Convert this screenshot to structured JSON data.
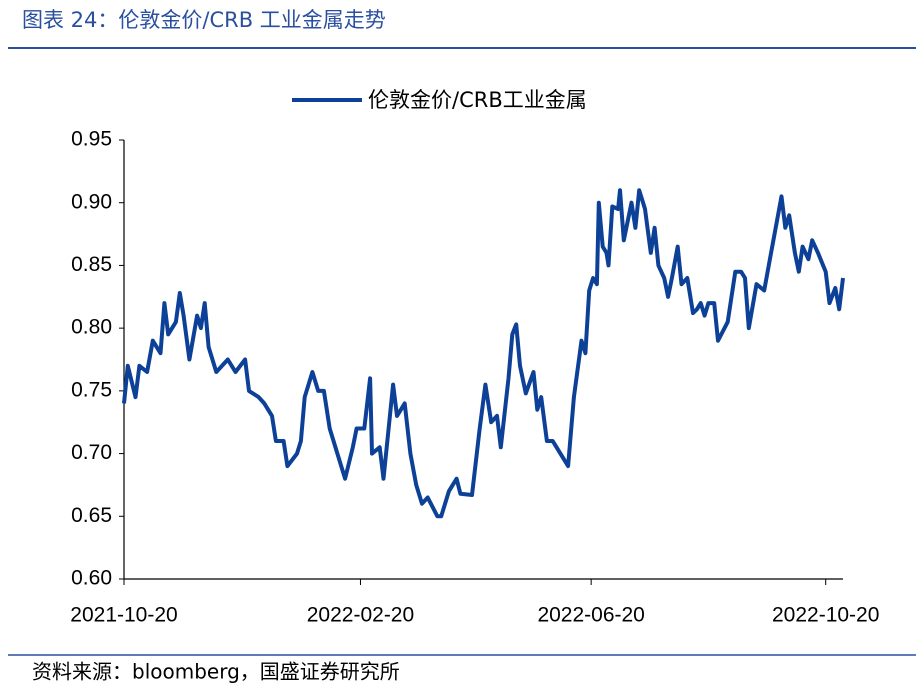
{
  "header": {
    "title": "图表 24：伦敦金价/CRB 工业金属走势"
  },
  "footer": {
    "source": "资料来源：bloomberg，国盛证券研究所"
  },
  "chart_data": {
    "type": "line",
    "legend": "top",
    "x": [
      "2021-10-20",
      "2021-10-22",
      "2021-10-26",
      "2021-10-28",
      "2021-11-01",
      "2021-11-04",
      "2021-11-08",
      "2021-11-10",
      "2021-11-12",
      "2021-11-16",
      "2021-11-18",
      "2021-11-20",
      "2021-11-23",
      "2021-11-27",
      "2021-11-29",
      "2021-12-01",
      "2021-12-03",
      "2021-12-07",
      "2021-12-13",
      "2021-12-17",
      "2021-12-22",
      "2021-12-24",
      "2021-12-29",
      "2022-01-01",
      "2022-01-05",
      "2022-01-07",
      "2022-01-11",
      "2022-01-13",
      "2022-01-18",
      "2022-01-20",
      "2022-01-22",
      "2022-01-26",
      "2022-01-29",
      "2022-02-01",
      "2022-02-04",
      "2022-02-10",
      "2022-02-12",
      "2022-02-16",
      "2022-02-18",
      "2022-02-22",
      "2022-02-25",
      "2022-02-26",
      "2022-03-02",
      "2022-03-04",
      "2022-03-09",
      "2022-03-11",
      "2022-03-15",
      "2022-03-18",
      "2022-03-21",
      "2022-03-24",
      "2022-03-27",
      "2022-04-01",
      "2022-04-03",
      "2022-04-07",
      "2022-04-11",
      "2022-04-13",
      "2022-04-19",
      "2022-04-23",
      "2022-04-26",
      "2022-04-29",
      "2022-05-02",
      "2022-05-04",
      "2022-05-08",
      "2022-05-10",
      "2022-05-12",
      "2022-05-14",
      "2022-05-17",
      "2022-05-21",
      "2022-05-23",
      "2022-05-25",
      "2022-05-28",
      "2022-05-31",
      "2022-06-04",
      "2022-06-08",
      "2022-06-11",
      "2022-06-15",
      "2022-06-17",
      "2022-06-19",
      "2022-06-21",
      "2022-06-23",
      "2022-06-24",
      "2022-06-26",
      "2022-06-28",
      "2022-06-29",
      "2022-07-01",
      "2022-07-04",
      "2022-07-05",
      "2022-07-07",
      "2022-07-11",
      "2022-07-13",
      "2022-07-15",
      "2022-07-18",
      "2022-07-21",
      "2022-07-23",
      "2022-07-25",
      "2022-07-28",
      "2022-07-30",
      "2022-08-01",
      "2022-08-04",
      "2022-08-06",
      "2022-08-09",
      "2022-08-12",
      "2022-08-14",
      "2022-08-16",
      "2022-08-18",
      "2022-08-20",
      "2022-08-23",
      "2022-08-25",
      "2022-08-30",
      "2022-09-03",
      "2022-09-06",
      "2022-09-08",
      "2022-09-10",
      "2022-09-14",
      "2022-09-18",
      "2022-09-21",
      "2022-09-24",
      "2022-09-27",
      "2022-09-29",
      "2022-10-01",
      "2022-10-04",
      "2022-10-06",
      "2022-10-08",
      "2022-10-11",
      "2022-10-13",
      "2022-10-16",
      "2022-10-20",
      "2022-10-22",
      "2022-10-25",
      "2022-10-27",
      "2022-10-29"
    ],
    "series": [
      {
        "name": "伦敦金价/CRB工业金属",
        "color": "#0d4197",
        "values": [
          0.74,
          0.77,
          0.745,
          0.77,
          0.765,
          0.79,
          0.78,
          0.82,
          0.795,
          0.805,
          0.828,
          0.81,
          0.775,
          0.81,
          0.8,
          0.82,
          0.785,
          0.765,
          0.775,
          0.765,
          0.775,
          0.75,
          0.745,
          0.74,
          0.73,
          0.71,
          0.71,
          0.69,
          0.7,
          0.71,
          0.745,
          0.765,
          0.75,
          0.75,
          0.72,
          0.69,
          0.68,
          0.705,
          0.72,
          0.72,
          0.76,
          0.7,
          0.705,
          0.68,
          0.755,
          0.73,
          0.74,
          0.7,
          0.675,
          0.66,
          0.665,
          0.65,
          0.65,
          0.67,
          0.68,
          0.668,
          0.667,
          0.72,
          0.755,
          0.725,
          0.73,
          0.705,
          0.76,
          0.795,
          0.803,
          0.77,
          0.748,
          0.765,
          0.735,
          0.745,
          0.71,
          0.71,
          0.7,
          0.69,
          0.745,
          0.79,
          0.78,
          0.83,
          0.84,
          0.835,
          0.9,
          0.865,
          0.86,
          0.85,
          0.897,
          0.895,
          0.91,
          0.87,
          0.9,
          0.88,
          0.91,
          0.895,
          0.86,
          0.88,
          0.85,
          0.84,
          0.825,
          0.84,
          0.865,
          0.835,
          0.84,
          0.812,
          0.815,
          0.82,
          0.81,
          0.82,
          0.82,
          0.79,
          0.805,
          0.845,
          0.845,
          0.84,
          0.8,
          0.835,
          0.83,
          0.855,
          0.88,
          0.905,
          0.88,
          0.89,
          0.86,
          0.845,
          0.865,
          0.855,
          0.87,
          0.86,
          0.845,
          0.82,
          0.832,
          0.815,
          0.84
        ]
      }
    ],
    "xlim": [
      "2021-10-20",
      "2022-10-29"
    ],
    "xticks": [
      "2021-10-20",
      "2022-02-20",
      "2022-06-20",
      "2022-10-20"
    ],
    "ylim": [
      0.6,
      0.95
    ],
    "yticks": [
      {
        "value": 0.6,
        "label": "0.60"
      },
      0.65,
      {
        "value": 0.7,
        "label": "0.70"
      },
      0.75,
      {
        "value": 0.8,
        "label": "0.80"
      },
      0.85,
      {
        "value": 0.9,
        "label": "0.90"
      },
      0.95
    ]
  }
}
